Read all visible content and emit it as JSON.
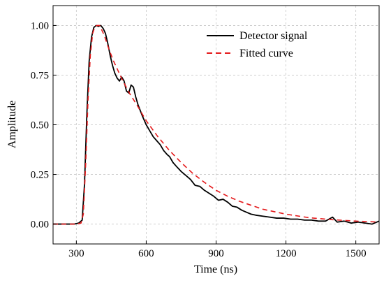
{
  "chart_data": {
    "type": "line",
    "xlabel": "Time (ns)",
    "ylabel": "Amplitude",
    "xlim": [
      200,
      1600
    ],
    "ylim": [
      -0.1,
      1.1
    ],
    "xticks": [
      300,
      600,
      900,
      1200,
      1500
    ],
    "yticks": [
      0.0,
      0.25,
      0.5,
      0.75,
      1.0
    ],
    "xtick_labels": [
      "300",
      "600",
      "900",
      "1200",
      "1500"
    ],
    "ytick_labels": [
      "0.00",
      "0.25",
      "0.50",
      "0.75",
      "1.00"
    ],
    "grid": true,
    "legend_position": "top-right",
    "series": [
      {
        "name": "Detector signal",
        "color": "#000000",
        "style": "solid",
        "x": [
          200,
          230,
          260,
          290,
          310,
          325,
          335,
          345,
          355,
          365,
          375,
          385,
          395,
          405,
          415,
          425,
          435,
          445,
          455,
          465,
          475,
          485,
          495,
          505,
          515,
          525,
          535,
          545,
          555,
          565,
          575,
          585,
          600,
          615,
          630,
          645,
          660,
          675,
          690,
          700,
          715,
          730,
          750,
          770,
          790,
          810,
          830,
          850,
          870,
          890,
          910,
          930,
          950,
          970,
          990,
          1010,
          1030,
          1050,
          1070,
          1100,
          1130,
          1160,
          1190,
          1220,
          1250,
          1280,
          1310,
          1340,
          1370,
          1400,
          1420,
          1450,
          1480,
          1510,
          1540,
          1570,
          1600
        ],
        "values": [
          0.0,
          0.0,
          0.0,
          0.0,
          0.005,
          0.02,
          0.2,
          0.55,
          0.82,
          0.94,
          0.99,
          1.0,
          0.995,
          1.0,
          0.985,
          0.96,
          0.91,
          0.85,
          0.8,
          0.76,
          0.735,
          0.72,
          0.74,
          0.72,
          0.67,
          0.66,
          0.7,
          0.69,
          0.64,
          0.6,
          0.57,
          0.54,
          0.5,
          0.47,
          0.44,
          0.42,
          0.4,
          0.37,
          0.35,
          0.34,
          0.31,
          0.29,
          0.265,
          0.245,
          0.225,
          0.195,
          0.19,
          0.17,
          0.155,
          0.14,
          0.12,
          0.125,
          0.11,
          0.09,
          0.085,
          0.07,
          0.06,
          0.05,
          0.045,
          0.04,
          0.035,
          0.03,
          0.03,
          0.025,
          0.025,
          0.02,
          0.02,
          0.015,
          0.015,
          0.035,
          0.01,
          0.015,
          0.005,
          0.01,
          0.005,
          0.0,
          0.015
        ]
      },
      {
        "name": "Fitted curve",
        "color": "#e41a1c",
        "style": "dashed",
        "x": [
          200,
          250,
          300,
          320,
          330,
          340,
          350,
          360,
          370,
          380,
          390,
          400,
          420,
          440,
          460,
          480,
          500,
          530,
          560,
          600,
          650,
          700,
          750,
          800,
          850,
          900,
          950,
          1000,
          1100,
          1200,
          1300,
          1400,
          1500,
          1600
        ],
        "values": [
          0.0,
          0.0,
          0.0,
          0.005,
          0.05,
          0.3,
          0.62,
          0.85,
          0.96,
          0.995,
          1.0,
          1.0,
          0.95,
          0.88,
          0.82,
          0.77,
          0.72,
          0.655,
          0.6,
          0.52,
          0.44,
          0.37,
          0.31,
          0.255,
          0.21,
          0.17,
          0.14,
          0.115,
          0.075,
          0.05,
          0.032,
          0.022,
          0.015,
          0.01
        ]
      }
    ]
  }
}
